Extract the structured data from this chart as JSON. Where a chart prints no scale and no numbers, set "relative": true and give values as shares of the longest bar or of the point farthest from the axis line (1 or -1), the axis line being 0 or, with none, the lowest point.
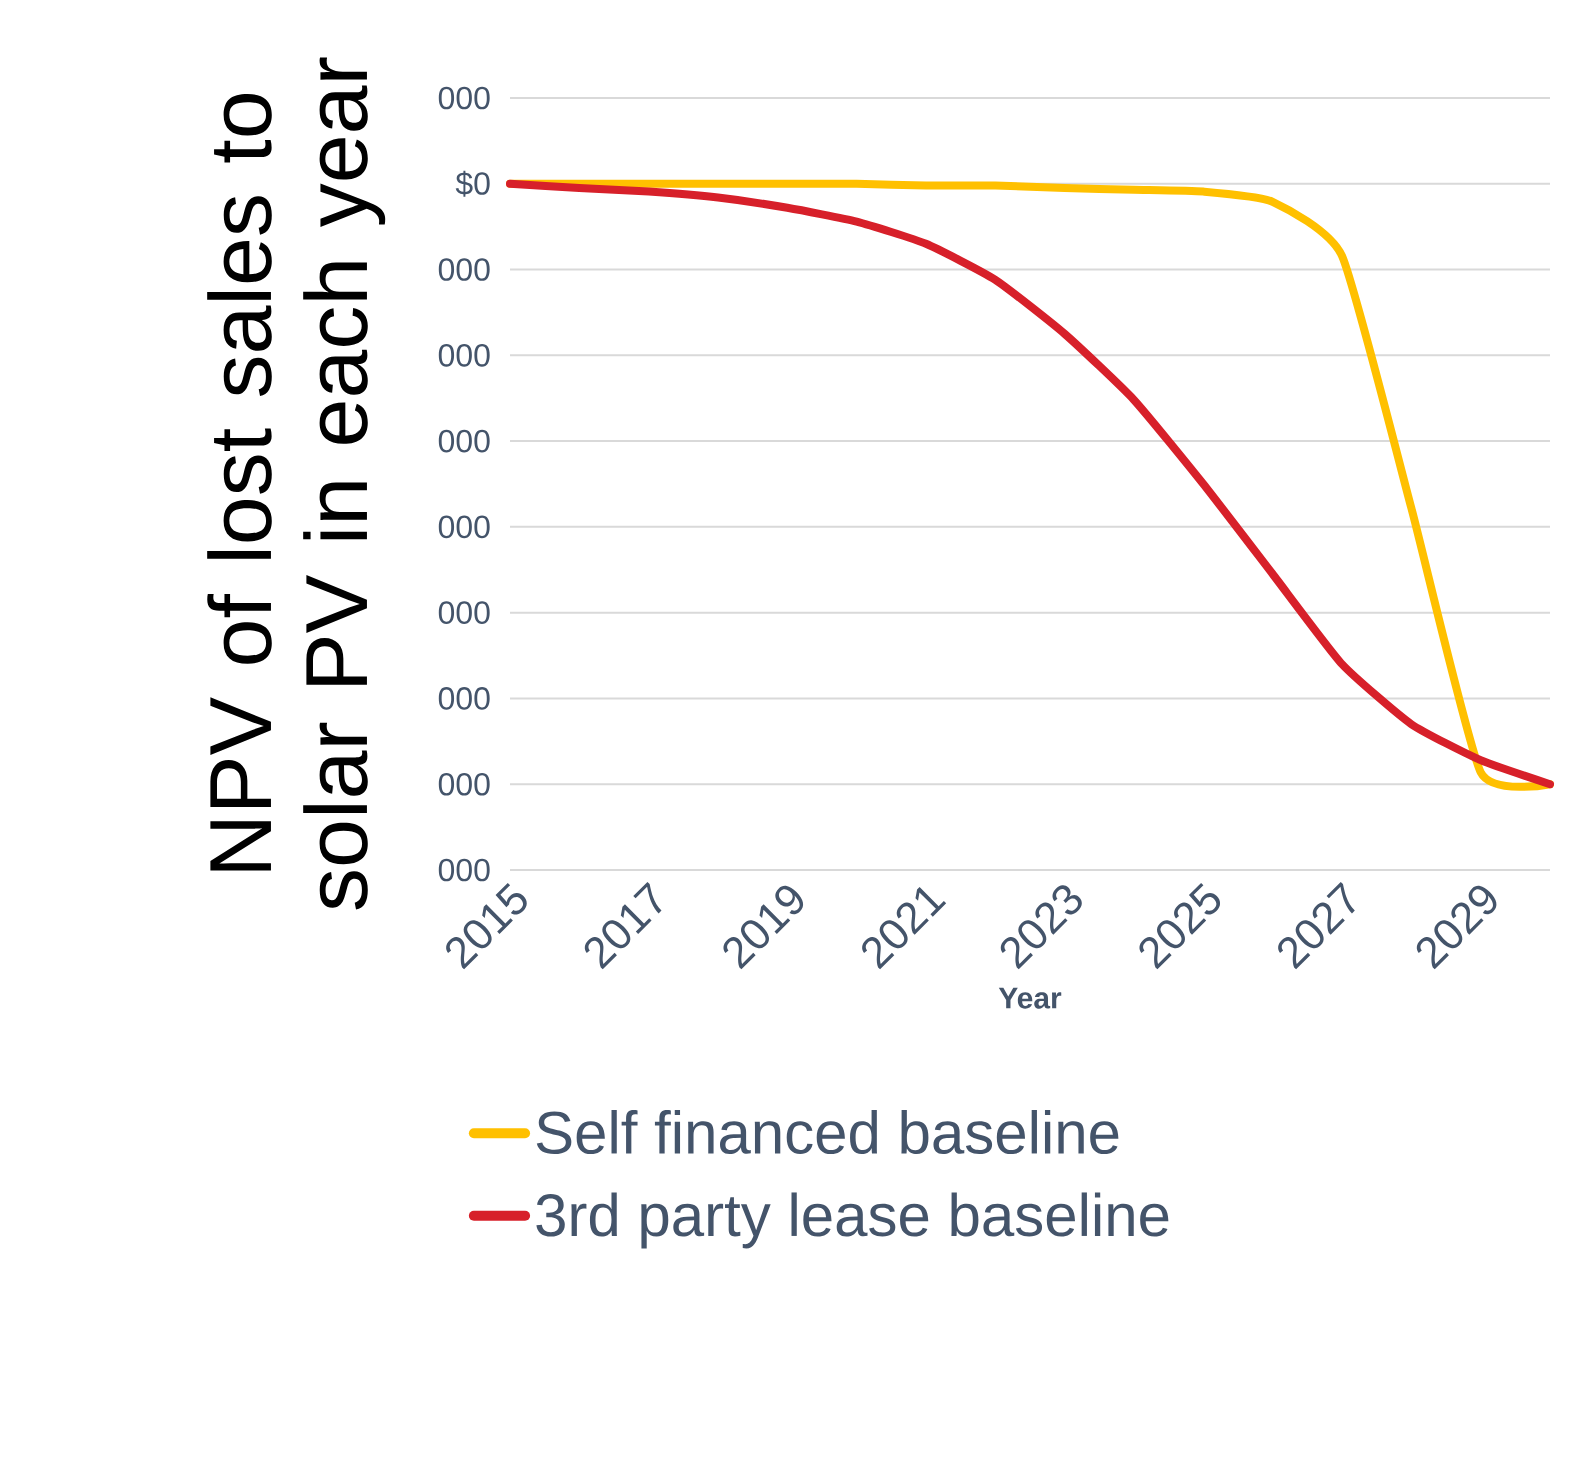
{
  "chart_data": {
    "type": "line",
    "relative": true,
    "ylabel": "NPV of lost sales to solar PV in each year",
    "xlabel": "Year",
    "categories": [
      "2015",
      null,
      "2017",
      null,
      "2019",
      null,
      "2021",
      null,
      "2023",
      null,
      "2025",
      null,
      "2027",
      null,
      "2029",
      null
    ],
    "annotations": [
      "000",
      "$0",
      "000",
      "000",
      "000",
      "000",
      "000",
      "000",
      "000",
      "000"
    ],
    "grid": "y",
    "legend": "bottom",
    "marker": "none",
    "line_style": "solid",
    "series": [
      {
        "name": "Self financed baseline",
        "color": "#ffc000",
        "values": [
          0,
          0,
          0,
          0,
          0,
          0,
          -0.003,
          -0.003,
          -0.007,
          -0.01,
          -0.013,
          -0.03,
          -0.12,
          -0.54,
          -0.98,
          -1
        ]
      },
      {
        "name": "3rd party lease baseline",
        "color": "#d7202a",
        "values": [
          0,
          -0.007,
          -0.013,
          -0.023,
          -0.04,
          -0.063,
          -0.1,
          -0.16,
          -0.25,
          -0.36,
          -0.5,
          -0.65,
          -0.8,
          -0.9,
          -0.96,
          -1
        ]
      }
    ]
  }
}
